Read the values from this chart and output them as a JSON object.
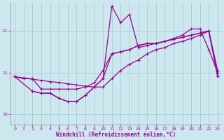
{
  "xlabel": "Windchill (Refroidissement éolien,°C)",
  "background_color": "#cce8ee",
  "grid_color": "#aacccc",
  "line_color": "#990099",
  "xlim": [
    -0.5,
    23.5
  ],
  "ylim": [
    9.75,
    12.7
  ],
  "yticks": [
    10,
    11,
    12
  ],
  "xticks": [
    0,
    1,
    2,
    3,
    4,
    5,
    6,
    7,
    8,
    9,
    10,
    11,
    12,
    13,
    14,
    15,
    16,
    17,
    18,
    19,
    20,
    21,
    22,
    23
  ],
  "series1_x": [
    0,
    1,
    2,
    3,
    4,
    5,
    6,
    7,
    8,
    9,
    10,
    11,
    12,
    13,
    14,
    15,
    16,
    17,
    18,
    19,
    20,
    21,
    22,
    23
  ],
  "series1_y": [
    10.9,
    10.85,
    10.85,
    10.6,
    10.6,
    10.6,
    10.6,
    10.6,
    10.65,
    10.75,
    11.05,
    11.45,
    11.5,
    11.55,
    11.65,
    11.7,
    11.7,
    11.75,
    11.8,
    11.85,
    11.9,
    11.95,
    12.0,
    10.9
  ],
  "series2_x": [
    0,
    1,
    2,
    3,
    4,
    5,
    6,
    7,
    8,
    9,
    10,
    11,
    12,
    13,
    14,
    15,
    16,
    17,
    18,
    19,
    20,
    21,
    22,
    23
  ],
  "series2_y": [
    10.9,
    10.87,
    10.84,
    10.81,
    10.78,
    10.76,
    10.73,
    10.7,
    10.67,
    10.65,
    10.65,
    10.85,
    11.05,
    11.2,
    11.3,
    11.45,
    11.55,
    11.6,
    11.7,
    11.75,
    11.82,
    11.9,
    12.0,
    11.05
  ],
  "series3_x": [
    0,
    2,
    3,
    4,
    5,
    6,
    7,
    8,
    9,
    10,
    11,
    12,
    13,
    14,
    15,
    16,
    17,
    18,
    19,
    20,
    21,
    22,
    23
  ],
  "series3_y": [
    10.9,
    10.55,
    10.5,
    10.5,
    10.38,
    10.3,
    10.3,
    10.45,
    10.65,
    10.85,
    11.45,
    11.5,
    11.55,
    11.65,
    11.7,
    11.7,
    11.75,
    11.8,
    11.85,
    11.9,
    11.95,
    12.0,
    10.9
  ],
  "series4_x": [
    2,
    3,
    4,
    5,
    6,
    7,
    8,
    9,
    10,
    11,
    12,
    13,
    14,
    15,
    16,
    17,
    18,
    19,
    20,
    21,
    22,
    23
  ],
  "series4_y": [
    10.55,
    10.5,
    10.5,
    10.38,
    10.3,
    10.3,
    10.45,
    10.65,
    10.85,
    12.6,
    12.2,
    12.4,
    11.6,
    11.65,
    11.7,
    11.75,
    11.82,
    11.9,
    12.05,
    12.05,
    11.55,
    11.0
  ]
}
